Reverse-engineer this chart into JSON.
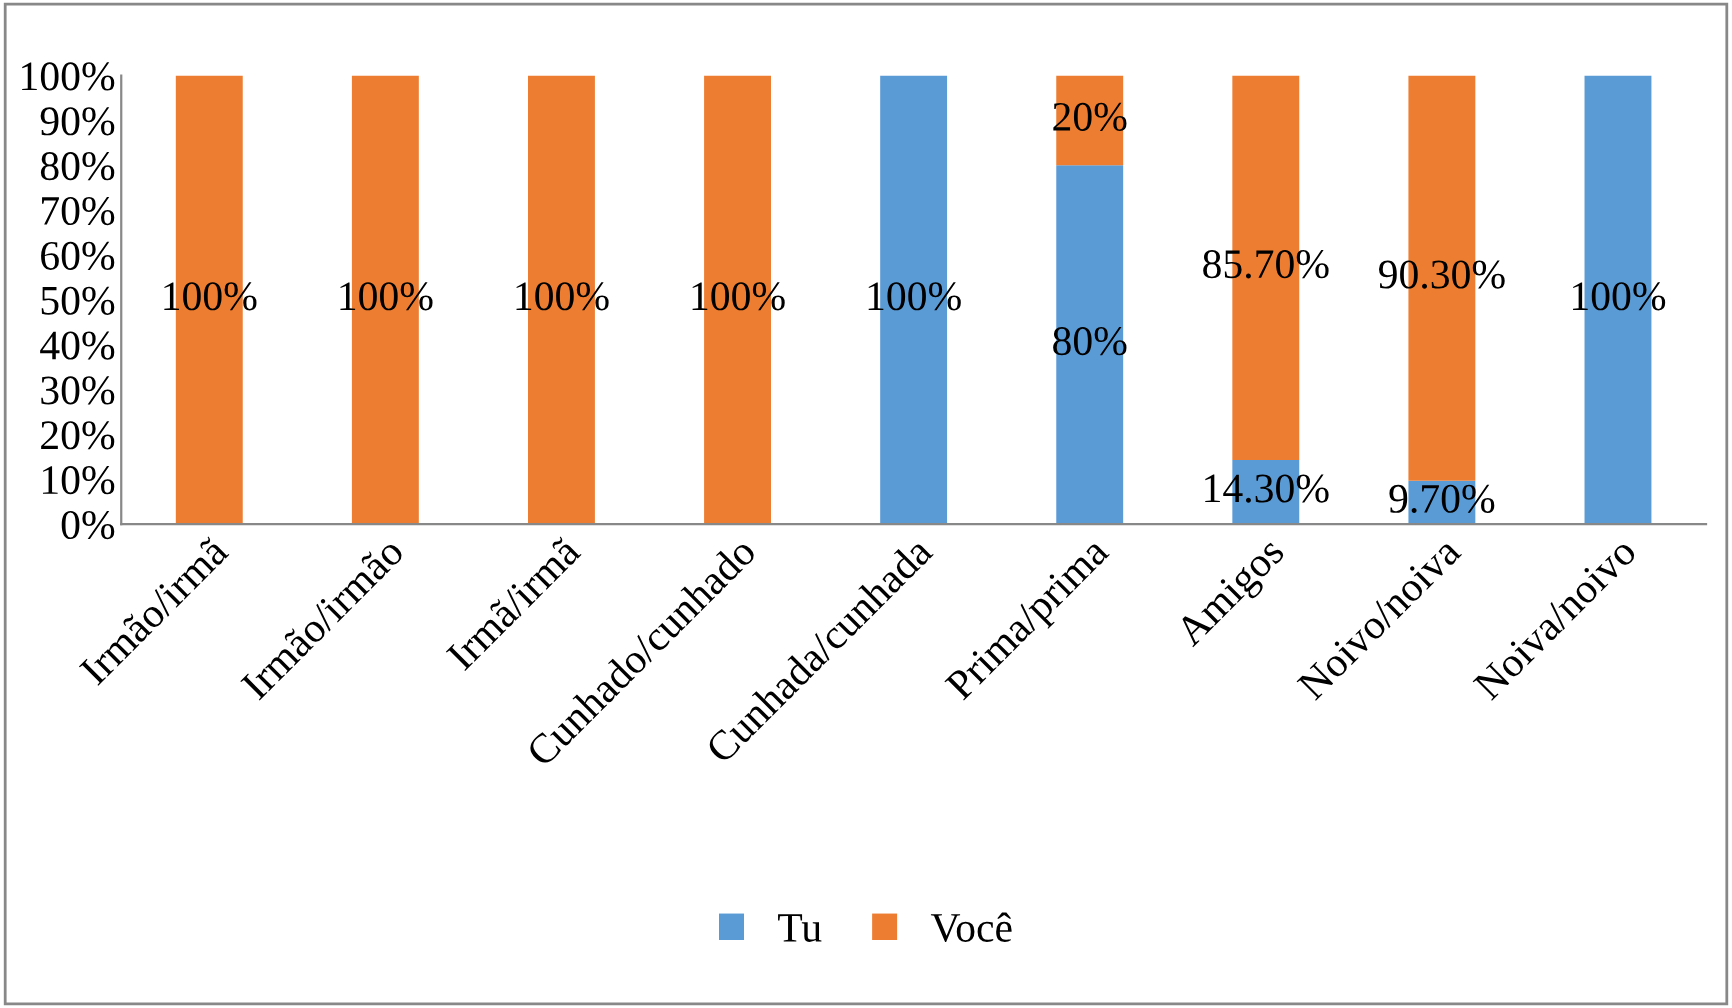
{
  "chart_data": {
    "type": "bar",
    "stacked": true,
    "categories": [
      "Irmão/irmã",
      "Irmão/irmão",
      "Irmã/irmã",
      "Cunhado/cunhado",
      "Cunhada/cunhada",
      "Prima/prima",
      "Amigos",
      "Noivo/noiva",
      "Noiva/noivo"
    ],
    "series": [
      {
        "name": "Tu",
        "color": "#5b9bd5",
        "values": [
          0,
          0,
          0,
          0,
          100,
          80,
          14.3,
          9.7,
          100
        ],
        "value_labels": [
          null,
          null,
          null,
          null,
          "100%",
          "80%",
          "14.30%",
          "9.70%",
          "100%"
        ]
      },
      {
        "name": "Você",
        "color": "#ed7d31",
        "values": [
          100,
          100,
          100,
          100,
          0,
          20,
          85.7,
          90.3,
          0
        ],
        "value_labels": [
          "100%",
          "100%",
          "100%",
          "100%",
          null,
          "20%",
          "85.70%",
          "90.30%",
          null
        ]
      }
    ],
    "ylim": [
      0,
      100
    ],
    "yticks": [
      {
        "value": 0,
        "label": "0%"
      },
      {
        "value": 10,
        "label": "10%"
      },
      {
        "value": 20,
        "label": "20%"
      },
      {
        "value": 30,
        "label": "30%"
      },
      {
        "value": 40,
        "label": "40%"
      },
      {
        "value": 50,
        "label": "50%"
      },
      {
        "value": 60,
        "label": "60%"
      },
      {
        "value": 70,
        "label": "70%"
      },
      {
        "value": 80,
        "label": "80%"
      },
      {
        "value": 90,
        "label": "90%"
      },
      {
        "value": 100,
        "label": "100%"
      }
    ],
    "grid": false,
    "legend": "bottom"
  }
}
